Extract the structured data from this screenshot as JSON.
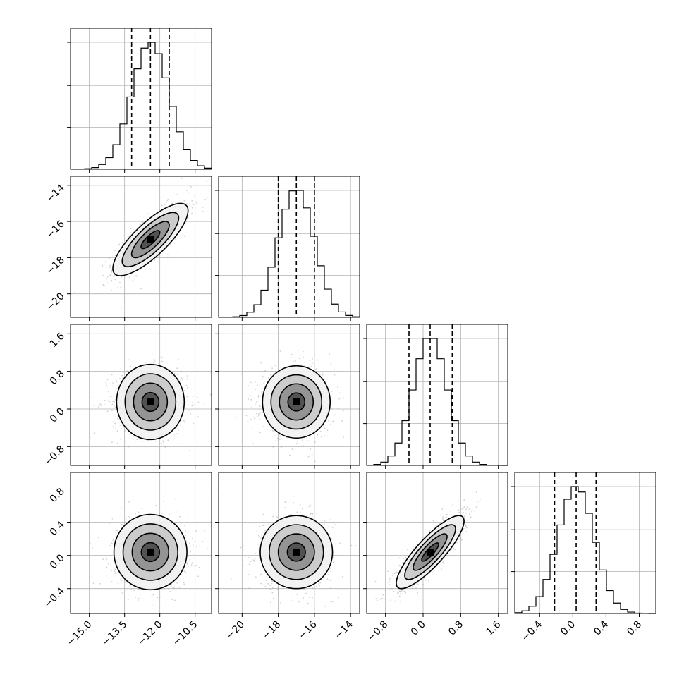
{
  "chart_data": {
    "type": "corner",
    "title": "",
    "parameters": [
      {
        "range": [
          -15.8,
          -9.8
        ],
        "ticks": [
          -15.0,
          -13.5,
          -12.0,
          -10.5
        ],
        "tick_labels": [
          "−15.0",
          "−13.5",
          "−12.0",
          "−10.5"
        ],
        "ylim_ticks": [],
        "mean": -12.4,
        "sd": 0.8,
        "quantiles": [
          -13.2,
          -12.4,
          -11.6
        ],
        "hist_peak_count": 1.0
      },
      {
        "range": [
          -21.3,
          -13.5
        ],
        "ticks": [
          -20,
          -18,
          -16,
          -14
        ],
        "tick_labels": [
          "−20",
          "−18",
          "−16",
          "−14"
        ],
        "mean": -17.0,
        "sd": 1.0,
        "quantiles": [
          -18.0,
          -17.0,
          -16.0
        ],
        "hist_peak_count": 1.0
      },
      {
        "range": [
          -1.2,
          1.8
        ],
        "ticks": [
          -0.8,
          0.0,
          0.8,
          1.6
        ],
        "tick_labels": [
          "−0.8",
          "0.0",
          "0.8",
          "1.6"
        ],
        "mean": 0.15,
        "sd": 0.36,
        "quantiles": [
          -0.3,
          0.15,
          0.62
        ],
        "hist_peak_count": 1.0
      },
      {
        "range": [
          -0.7,
          1.0
        ],
        "ticks": [
          -0.4,
          0.0,
          0.4,
          0.8
        ],
        "tick_labels": [
          "−0.4",
          "0.0",
          "0.4",
          "0.8"
        ],
        "mean": 0.04,
        "sd": 0.22,
        "quantiles": [
          -0.22,
          0.04,
          0.28
        ],
        "hist_peak_count": 1.0
      }
    ],
    "diag_hist_yticks_fraction": [
      0.33,
      0.66,
      1.0
    ],
    "correlations": [
      {
        "pair": [
          0,
          1
        ],
        "rho": 0.8
      },
      {
        "pair": [
          0,
          2
        ],
        "rho": 0.0
      },
      {
        "pair": [
          0,
          3
        ],
        "rho": 0.0
      },
      {
        "pair": [
          1,
          2
        ],
        "rho": 0.0
      },
      {
        "pair": [
          1,
          3
        ],
        "rho": 0.0
      },
      {
        "pair": [
          2,
          3
        ],
        "rho": 0.85
      }
    ],
    "contour_levels_sigma": [
      0.5,
      1.0,
      1.5,
      2.0
    ],
    "grid": true,
    "legend": false,
    "colors": {
      "ink": "#000000",
      "grid": "#b0b0b0",
      "points": "#9a9a9a"
    }
  }
}
